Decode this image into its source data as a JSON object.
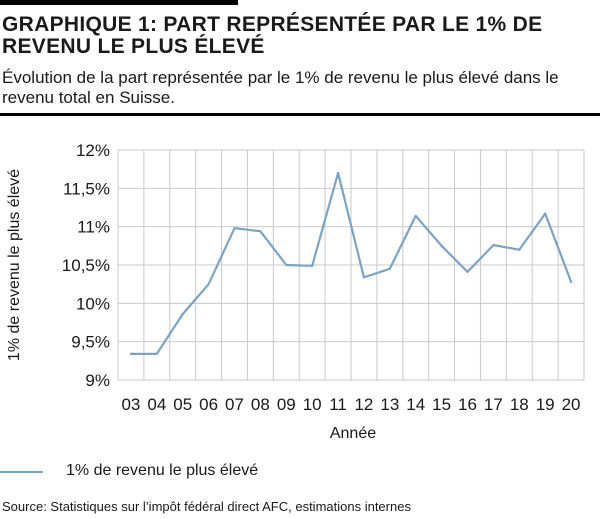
{
  "header": {
    "title": "GRAPHIQUE 1: PART REPRÉSENTÉE PAR LE 1% DE REVENU LE PLUS ÉLEVÉ",
    "subtitle": "Évolution de la part représentée par le 1% de revenu le plus élevé dans le revenu total en Suisse."
  },
  "footer": {
    "source": "Source: Statistiques sur l’impôt fédéral direct AFC, estimations internes"
  },
  "colors": {
    "series": "#7aa3c6",
    "grid": "#c9c9c9",
    "text": "#1a1a1a"
  },
  "chart_data": {
    "type": "line",
    "x": [
      "03",
      "04",
      "05",
      "06",
      "07",
      "08",
      "09",
      "10",
      "11",
      "12",
      "13",
      "14",
      "15",
      "16",
      "17",
      "18",
      "19",
      "20"
    ],
    "series": [
      {
        "name": "1% de revenu le plus élevé",
        "values": [
          9.34,
          9.34,
          9.86,
          10.25,
          10.98,
          10.94,
          10.5,
          10.49,
          11.7,
          10.34,
          10.45,
          11.14,
          10.75,
          10.41,
          10.76,
          10.7,
          11.17,
          10.28
        ]
      }
    ],
    "xlabel": "Année",
    "ylabel": "1% de revenu le plus élevé",
    "ylim": [
      9,
      12
    ],
    "yticks": [
      9,
      9.5,
      10,
      10.5,
      11,
      11.5,
      12
    ],
    "ytick_labels": [
      "9%",
      "9,5%",
      "10%",
      "10,5%",
      "11%",
      "11,5%",
      "12%"
    ],
    "grid": true,
    "legend": "bottom-left"
  }
}
